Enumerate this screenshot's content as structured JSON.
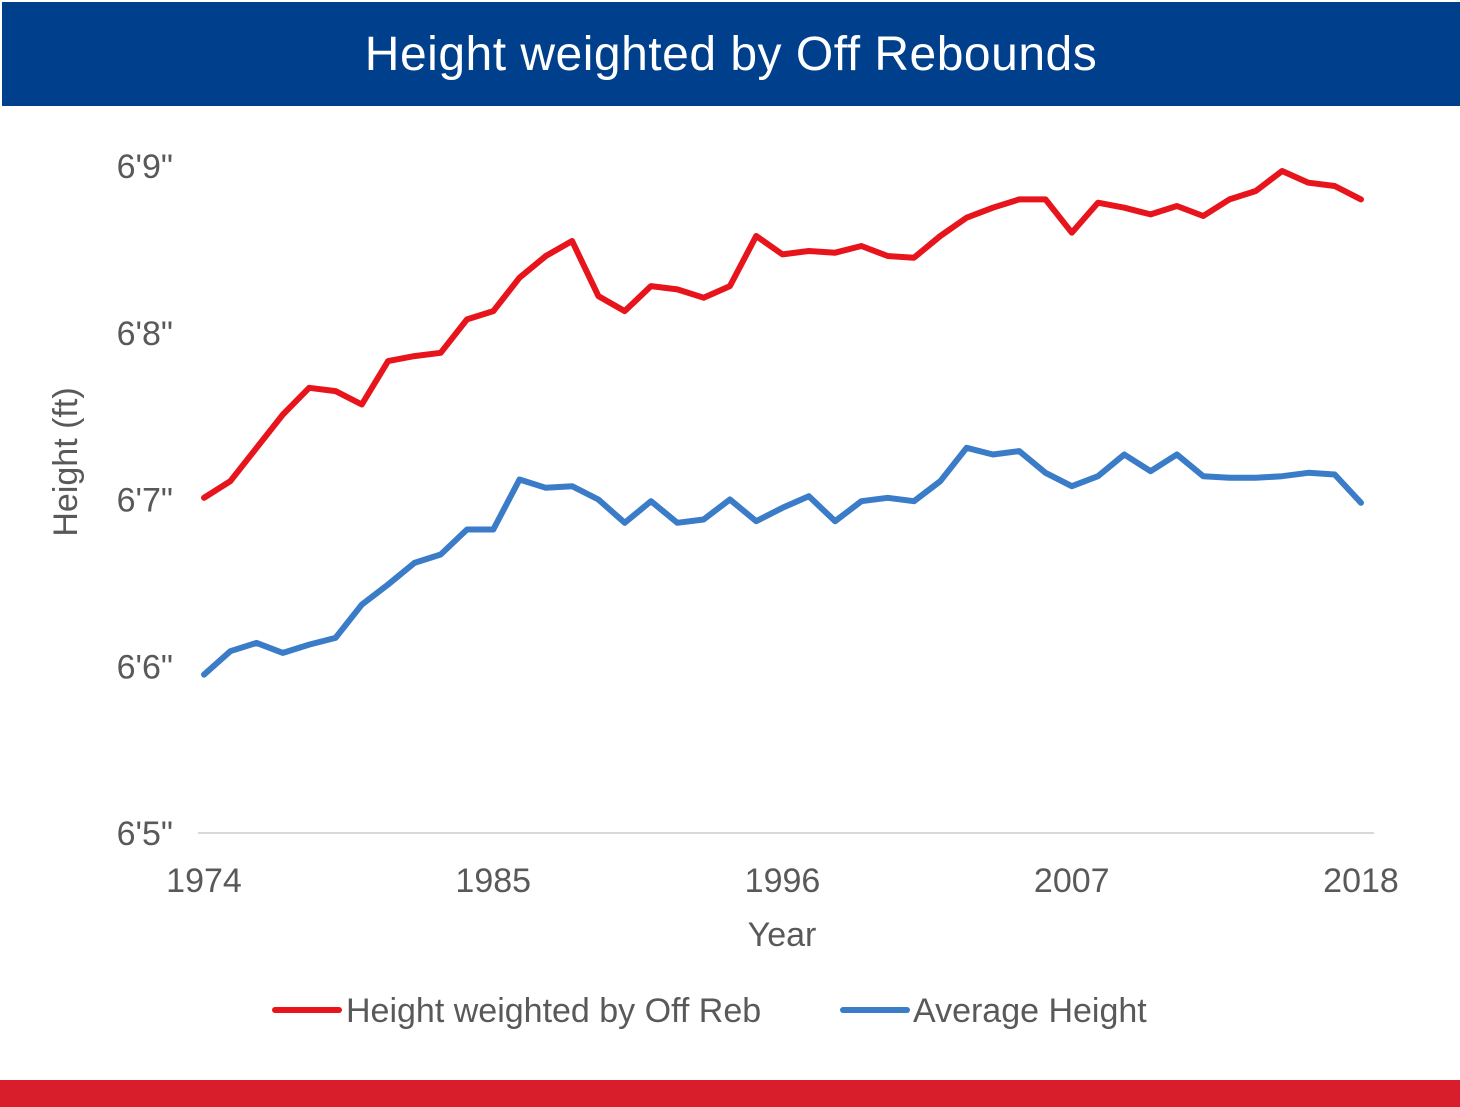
{
  "header": {
    "title": "Height weighted by Off Rebounds"
  },
  "colors": {
    "header_bg": "#003F8C",
    "footer_bar": "#D81E2B",
    "series_offreb": "#E8141C",
    "series_avg": "#3A7CC8",
    "axis_line": "#D9D9D9",
    "text": "#595959"
  },
  "chart_data": {
    "type": "line",
    "title": "Height weighted by Off Rebounds",
    "xlabel": "Year",
    "ylabel": "Height (ft)",
    "xlim": [
      1974,
      2018
    ],
    "ylim": [
      77,
      81
    ],
    "x_ticks": [
      1974,
      1985,
      1996,
      2007,
      2018
    ],
    "x_tick_labels": [
      "1974",
      "1985",
      "1996",
      "2007",
      "2018"
    ],
    "y_ticks": [
      77,
      78,
      79,
      80,
      81
    ],
    "y_tick_labels": [
      "6'5\"",
      "6'6\"",
      "6'7\"",
      "6'8\"",
      "6'9\""
    ],
    "grid": false,
    "legend_position": "bottom",
    "x": [
      1974,
      1975,
      1976,
      1977,
      1978,
      1979,
      1980,
      1981,
      1982,
      1983,
      1984,
      1985,
      1986,
      1987,
      1988,
      1989,
      1990,
      1991,
      1992,
      1993,
      1994,
      1995,
      1996,
      1997,
      1998,
      1999,
      2000,
      2001,
      2002,
      2003,
      2004,
      2005,
      2006,
      2007,
      2008,
      2009,
      2010,
      2011,
      2012,
      2013,
      2014,
      2015,
      2016,
      2017,
      2018
    ],
    "series": [
      {
        "name": "Height weighted by Off Reb",
        "color": "#E8141C",
        "values": [
          79.01,
          79.11,
          79.31,
          79.51,
          79.67,
          79.65,
          79.57,
          79.83,
          79.86,
          79.88,
          80.08,
          80.13,
          80.33,
          80.46,
          80.55,
          80.22,
          80.13,
          80.28,
          80.26,
          80.21,
          80.28,
          80.58,
          80.47,
          80.49,
          80.48,
          80.52,
          80.46,
          80.45,
          80.58,
          80.69,
          80.75,
          80.8,
          80.8,
          80.6,
          80.78,
          80.75,
          80.71,
          80.76,
          80.7,
          80.8,
          80.85,
          80.97,
          80.9,
          80.88,
          80.8
        ]
      },
      {
        "name": "Average Height",
        "color": "#3A7CC8",
        "values": [
          77.95,
          78.09,
          78.14,
          78.08,
          78.13,
          78.17,
          78.37,
          78.49,
          78.62,
          78.67,
          78.82,
          78.82,
          79.12,
          79.07,
          79.08,
          79.0,
          78.86,
          78.99,
          78.86,
          78.88,
          79.0,
          78.87,
          78.95,
          79.02,
          78.87,
          78.99,
          79.01,
          78.99,
          79.11,
          79.31,
          79.27,
          79.29,
          79.16,
          79.08,
          79.14,
          79.27,
          79.17,
          79.27,
          79.14,
          79.13,
          79.13,
          79.14,
          79.16,
          79.15,
          78.98
        ]
      }
    ]
  }
}
